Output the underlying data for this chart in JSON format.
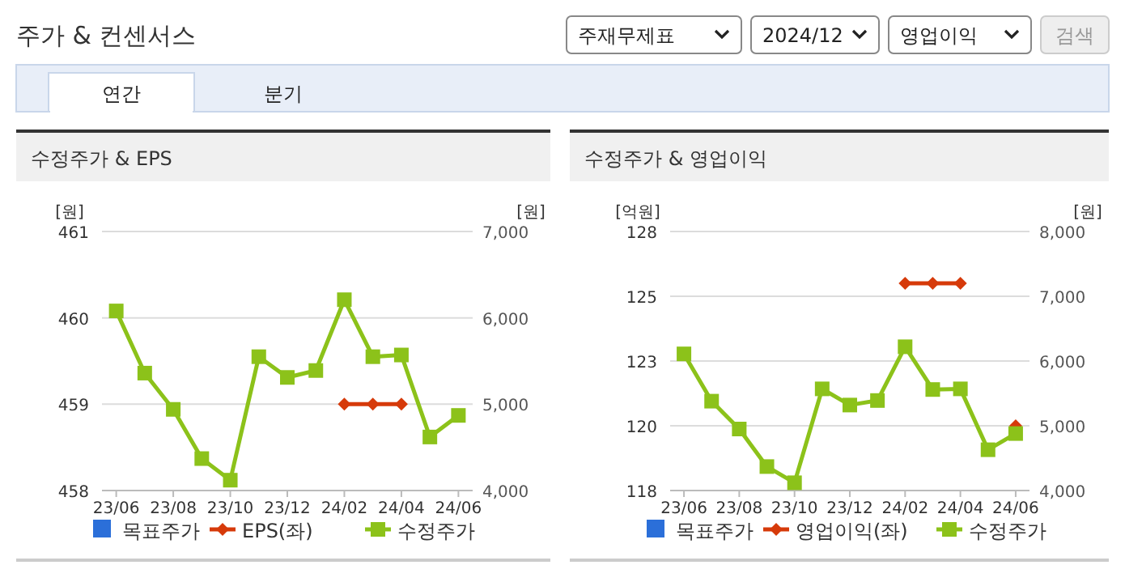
{
  "chart_data": [
    {
      "type": "other",
      "title": "주가 & 컨센서스",
      "annotations": [
        "주재무제표",
        "2024/12",
        "영업이익",
        "검색",
        "연간",
        "분기"
      ]
    },
    {
      "type": "line",
      "title": "수정주가 & EPS",
      "ylabel": "[원]",
      "y2label": "[원]",
      "categories": [
        "23/06",
        null,
        "23/08",
        null,
        "23/10",
        null,
        "23/12",
        null,
        "24/02",
        null,
        "24/04",
        null,
        "24/06"
      ],
      "ylim": [
        458,
        461
      ],
      "yticks": [
        458,
        459,
        460,
        461
      ],
      "y2lim": [
        4000,
        7000
      ],
      "y2ticks": [
        {
          "value": 4000,
          "label": "4,000"
        },
        {
          "value": 5000,
          "label": "5,000"
        },
        {
          "value": 6000,
          "label": "6,000"
        },
        {
          "value": 7000,
          "label": "7,000"
        }
      ],
      "grid": "y",
      "legend": "bottom",
      "series": [
        {
          "name": "목표주가",
          "type": "bar",
          "color": "#2b6fd9",
          "values": [
            null,
            null,
            null,
            null,
            null,
            null,
            null,
            null,
            null,
            null,
            null,
            null,
            null
          ]
        },
        {
          "name": "EPS(좌)",
          "color": "#d63a0a",
          "marker": "diamond",
          "values": [
            null,
            null,
            null,
            null,
            null,
            null,
            null,
            null,
            459,
            459,
            459,
            null,
            null
          ]
        },
        {
          "name": "수정주가",
          "color": "#8cc21a",
          "marker": "square",
          "axis": "y2",
          "values": [
            6080,
            5360,
            4940,
            4370,
            4120,
            5550,
            5310,
            5390,
            6210,
            5550,
            5570,
            4620,
            4870
          ]
        }
      ]
    },
    {
      "type": "line",
      "title": "수정주가 & 영업이익",
      "ylabel": "[억원]",
      "y2label": "[원]",
      "categories": [
        "23/06",
        null,
        "23/08",
        null,
        "23/10",
        null,
        "23/12",
        null,
        "24/02",
        null,
        "24/04",
        null,
        "24/06"
      ],
      "ylim": [
        118,
        128
      ],
      "yticks": [
        118,
        {
          "value": 120.5,
          "label": "120"
        },
        123,
        {
          "value": 125.5,
          "label": "125"
        },
        128
      ],
      "y2lim": [
        4000,
        8000
      ],
      "y2ticks": [
        {
          "value": 4000,
          "label": "4,000"
        },
        {
          "value": 5000,
          "label": "5,000"
        },
        {
          "value": 6000,
          "label": "6,000"
        },
        {
          "value": 7000,
          "label": "7,000"
        },
        {
          "value": 8000,
          "label": "8,000"
        }
      ],
      "grid": "y",
      "legend": "bottom",
      "series": [
        {
          "name": "목표주가",
          "type": "bar",
          "color": "#2b6fd9",
          "values": [
            null,
            null,
            null,
            null,
            null,
            null,
            null,
            null,
            null,
            null,
            null,
            null,
            null
          ]
        },
        {
          "name": "영업이익(좌)",
          "color": "#d63a0a",
          "marker": "diamond",
          "values": [
            null,
            null,
            null,
            null,
            null,
            null,
            null,
            null,
            126,
            126,
            126,
            null,
            120.5
          ]
        },
        {
          "name": "수정주가",
          "color": "#8cc21a",
          "marker": "square",
          "axis": "y2",
          "values": [
            6110,
            5380,
            4950,
            4370,
            4120,
            5570,
            5320,
            5390,
            6220,
            5560,
            5570,
            4630,
            4880
          ]
        }
      ]
    }
  ]
}
